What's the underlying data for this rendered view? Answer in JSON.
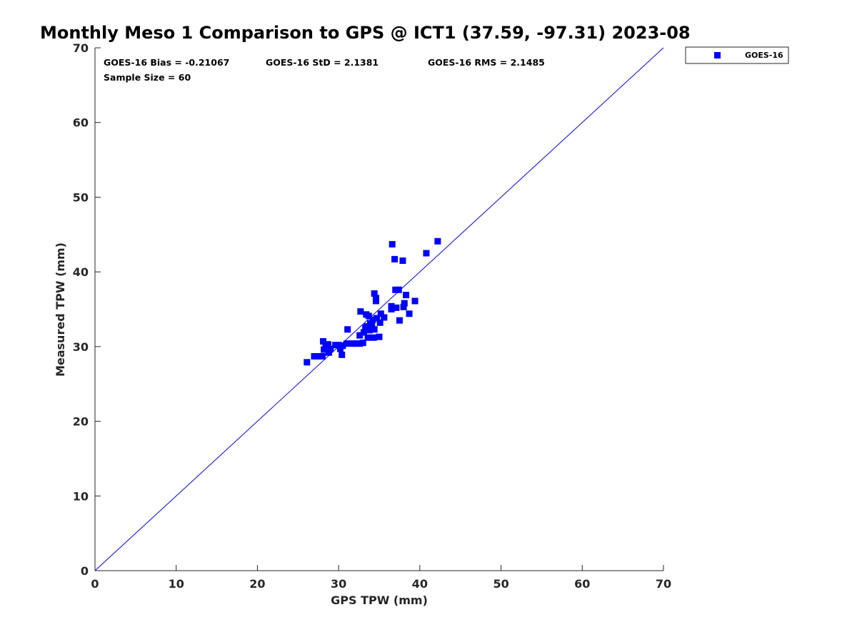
{
  "chart_data": {
    "type": "scatter",
    "title": "Monthly Meso 1 Comparison to GPS @ ICT1 (37.59, -97.31) 2023-08",
    "xlabel": "GPS TPW (mm)",
    "ylabel": "Measured TPW (mm)",
    "xlim": [
      0,
      70
    ],
    "ylim": [
      0,
      70
    ],
    "xticks": [
      "0",
      "10",
      "20",
      "30",
      "40",
      "50",
      "60",
      "70"
    ],
    "yticks": [
      "0",
      "10",
      "20",
      "30",
      "40",
      "50",
      "60",
      "70"
    ],
    "grid": false,
    "legend": {
      "position": "outside-top-right",
      "entries": [
        "GOES-16"
      ]
    },
    "stats": {
      "bias": "GOES-16 Bias = -0.21067",
      "std": "GOES-16 StD = 2.1381",
      "rms": "GOES-16 RMS = 2.1485",
      "sample": "Sample Size = 60"
    },
    "reference_line": {
      "type": "one-to-one",
      "from": [
        0,
        0
      ],
      "to": [
        70,
        70
      ],
      "color": "#0000ff"
    },
    "series": [
      {
        "name": "GOES-16",
        "color": "#0000ff",
        "marker": "square",
        "points": [
          [
            26.1,
            27.9
          ],
          [
            27.0,
            28.7
          ],
          [
            27.5,
            28.7
          ],
          [
            28.0,
            28.7
          ],
          [
            28.1,
            30.7
          ],
          [
            28.2,
            29.6
          ],
          [
            28.4,
            30.2
          ],
          [
            28.7,
            30.3
          ],
          [
            28.8,
            29.2
          ],
          [
            29.0,
            29.7
          ],
          [
            29.6,
            30.2
          ],
          [
            30.0,
            30.2
          ],
          [
            30.2,
            29.7
          ],
          [
            30.4,
            28.9
          ],
          [
            31.0,
            30.4
          ],
          [
            31.1,
            32.3
          ],
          [
            31.7,
            30.4
          ],
          [
            32.2,
            30.4
          ],
          [
            32.6,
            30.4
          ],
          [
            32.6,
            31.5
          ],
          [
            32.7,
            34.7
          ],
          [
            33.0,
            30.5
          ],
          [
            33.1,
            31.9
          ],
          [
            33.3,
            32.5
          ],
          [
            33.4,
            34.3
          ],
          [
            33.5,
            32.7
          ],
          [
            33.6,
            31.2
          ],
          [
            33.7,
            34.1
          ],
          [
            33.8,
            32.2
          ],
          [
            33.9,
            33.1
          ],
          [
            34.0,
            32.4
          ],
          [
            34.1,
            33.0
          ],
          [
            34.2,
            33.6
          ],
          [
            34.3,
            31.2
          ],
          [
            34.4,
            32.3
          ],
          [
            34.4,
            37.1
          ],
          [
            34.6,
            36.1
          ],
          [
            34.6,
            36.5
          ],
          [
            34.7,
            33.8
          ],
          [
            35.0,
            31.3
          ],
          [
            35.1,
            33.2
          ],
          [
            35.2,
            34.4
          ],
          [
            36.5,
            35.0
          ],
          [
            36.5,
            35.4
          ],
          [
            36.6,
            43.7
          ],
          [
            36.9,
            41.7
          ],
          [
            37.0,
            37.6
          ],
          [
            37.1,
            35.2
          ],
          [
            37.4,
            37.6
          ],
          [
            37.5,
            33.5
          ],
          [
            37.9,
            41.5
          ],
          [
            38.0,
            35.3
          ],
          [
            38.1,
            35.8
          ],
          [
            38.3,
            36.9
          ],
          [
            38.7,
            34.4
          ],
          [
            39.4,
            36.1
          ],
          [
            40.8,
            42.5
          ],
          [
            42.2,
            44.1
          ],
          [
            35.6,
            33.9
          ],
          [
            30.5,
            30.1
          ]
        ]
      }
    ]
  }
}
